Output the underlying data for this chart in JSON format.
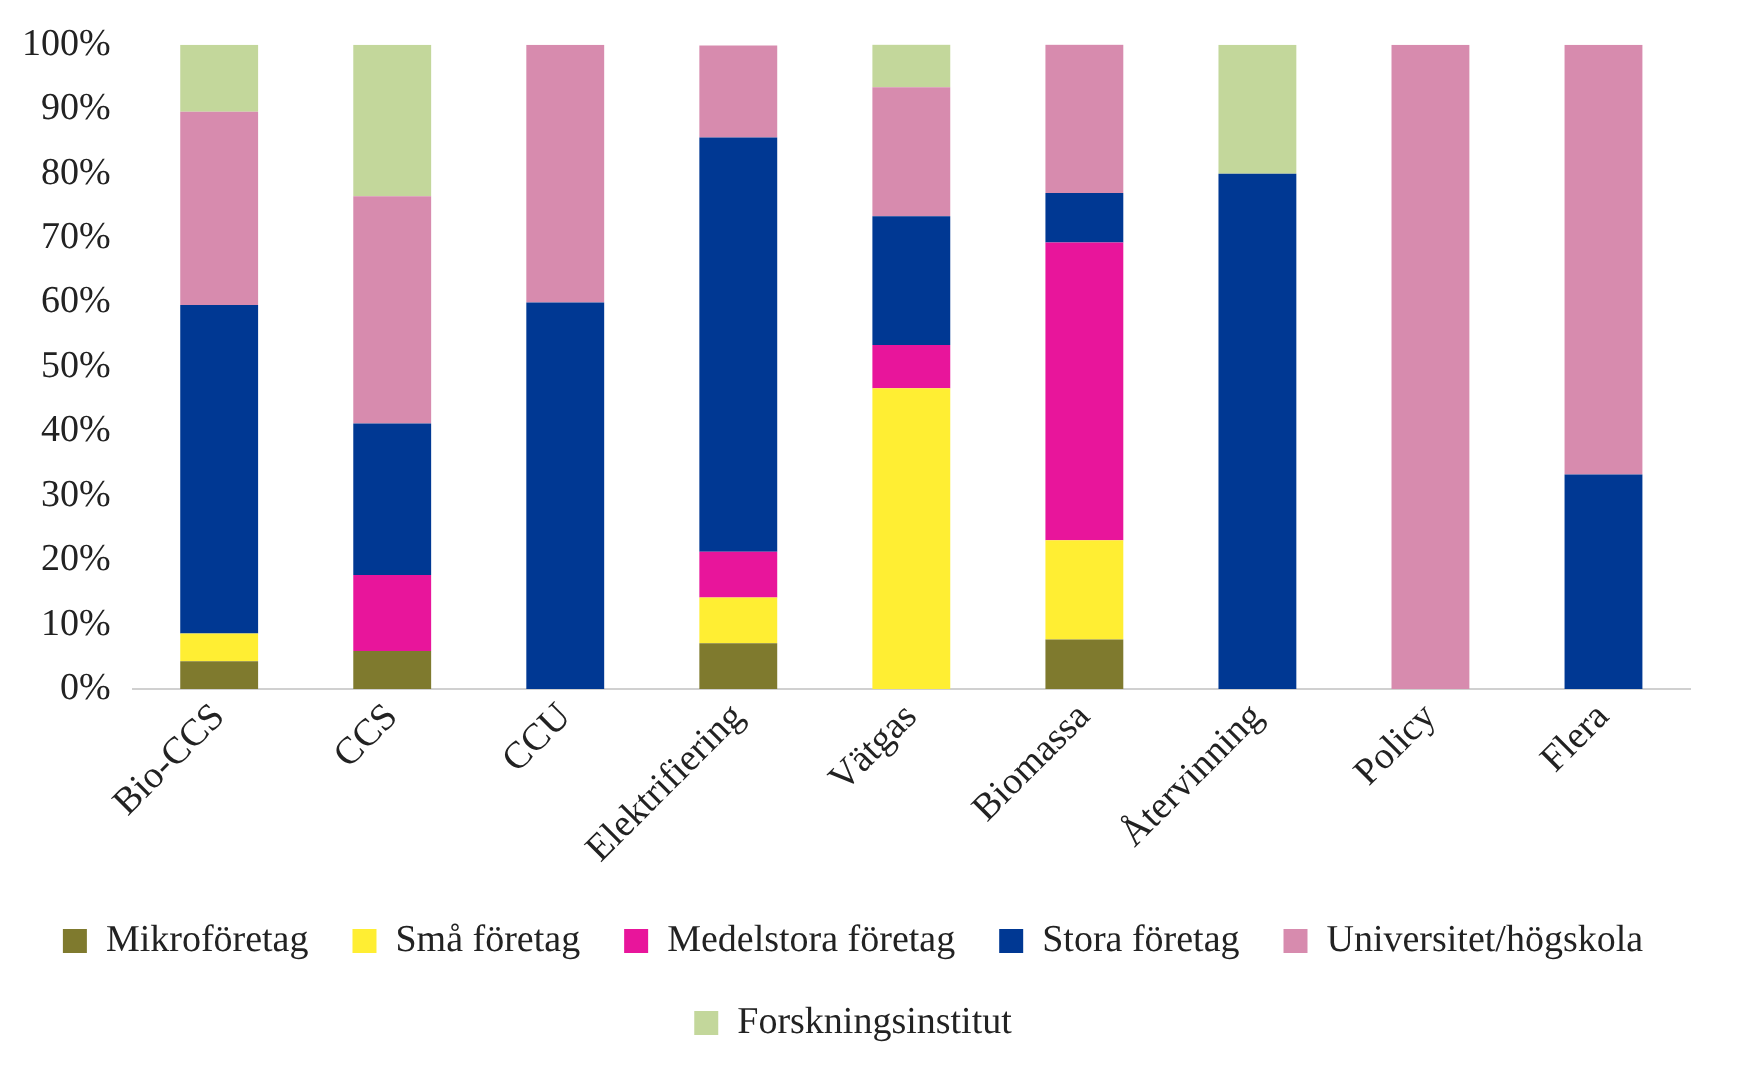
{
  "chart_data": {
    "type": "bar",
    "stacked": true,
    "categories": [
      "Bio-CCS",
      "CCS",
      "CCU",
      "Elektrifiering",
      "Vätgas",
      "Biomassa",
      "Återvinning",
      "Policy",
      "Flera"
    ],
    "series": [
      {
        "name": "Mikroföretag",
        "color": "#7f7a2e",
        "values": [
          4.3,
          5.9,
          0,
          7.1,
          0,
          7.7,
          0,
          0,
          0
        ]
      },
      {
        "name": "Små företag",
        "color": "#ffee33",
        "values": [
          4.3,
          0,
          0,
          7.1,
          46.7,
          15.4,
          0,
          0,
          0
        ]
      },
      {
        "name": "Medelstora företag",
        "color": "#e8159b",
        "values": [
          0,
          11.8,
          0,
          7.1,
          6.7,
          46.2,
          0,
          0,
          0
        ]
      },
      {
        "name": "Stora företag",
        "color": "#003893",
        "values": [
          51,
          23.5,
          60,
          64.3,
          20,
          7.7,
          80,
          0,
          33.3
        ]
      },
      {
        "name": "Universitet/högskola",
        "color": "#d78bae",
        "values": [
          30,
          35.3,
          40,
          14.3,
          20,
          23.1,
          0,
          100,
          66.7
        ]
      },
      {
        "name": "Forskningsinstitut",
        "color": "#c3d79b",
        "values": [
          10.4,
          23.5,
          0,
          0,
          6.7,
          0,
          20,
          0,
          0
        ]
      }
    ],
    "ylim": [
      0,
      100
    ],
    "yticks": [
      {
        "value": 0,
        "label": "0%"
      },
      {
        "value": 10,
        "label": "10%"
      },
      {
        "value": 20,
        "label": "20%"
      },
      {
        "value": 30,
        "label": "30%"
      },
      {
        "value": 40,
        "label": "40%"
      },
      {
        "value": 50,
        "label": "50%"
      },
      {
        "value": 60,
        "label": "60%"
      },
      {
        "value": 70,
        "label": "70%"
      },
      {
        "value": 80,
        "label": "80%"
      },
      {
        "value": 90,
        "label": "90%"
      },
      {
        "value": 100,
        "label": "100%"
      }
    ],
    "grid": false,
    "legend": "bottom"
  }
}
